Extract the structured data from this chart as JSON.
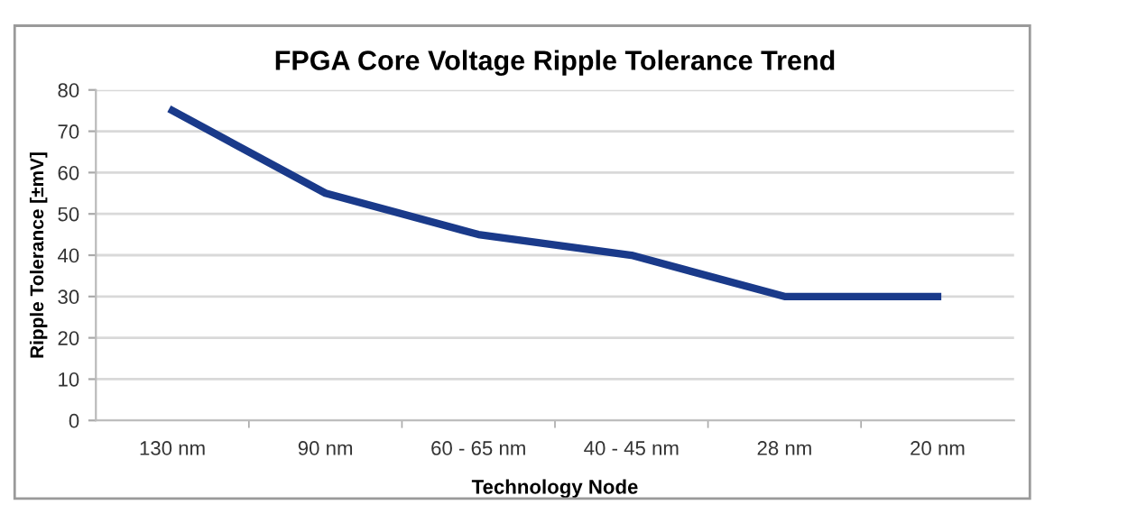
{
  "chart_data": {
    "type": "line",
    "title": "FPGA Core Voltage Ripple Tolerance Trend",
    "xlabel": "Technology Node",
    "ylabel": "Ripple Tolerance [±mV]",
    "categories": [
      "130 nm",
      "90 nm",
      "60 - 65 nm",
      "40 - 45 nm",
      "28 nm",
      "20 nm"
    ],
    "series": [
      {
        "color": "#1a3a8a",
        "values": [
          75,
          55,
          45,
          40,
          30,
          30
        ]
      }
    ],
    "ylim": [
      0,
      80
    ],
    "yticks": [
      0,
      10,
      20,
      30,
      40,
      50,
      60,
      70,
      80
    ],
    "grid": "y",
    "legend": false,
    "marker": "none",
    "line_style": "solid"
  }
}
